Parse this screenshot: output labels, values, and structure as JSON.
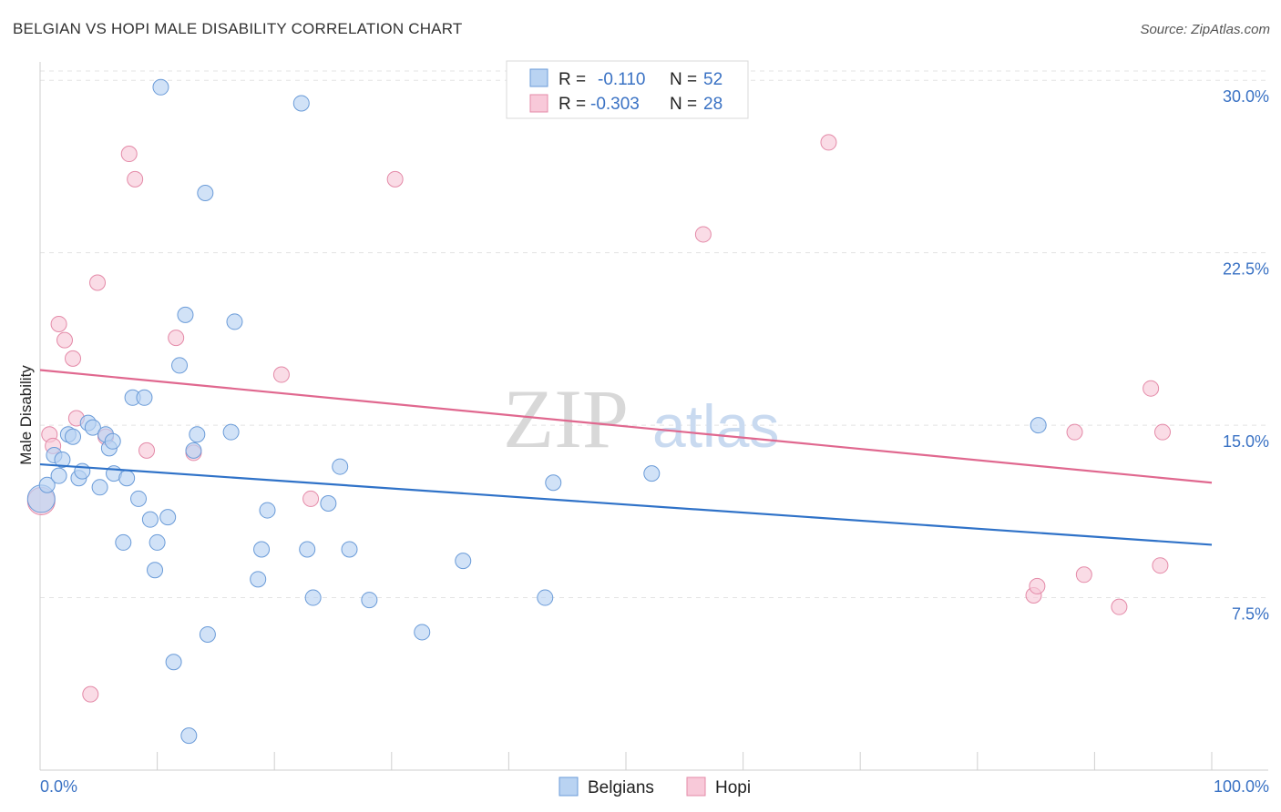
{
  "title": "BELGIAN VS HOPI MALE DISABILITY CORRELATION CHART",
  "source": "Source: ZipAtlas.com",
  "watermark": {
    "part1": "ZIP",
    "part2": "atlas"
  },
  "colors": {
    "belgians_fill": "#b9d3f2",
    "belgians_stroke": "#6a9bd8",
    "belgians_line": "#2f72c8",
    "hopi_fill": "#f8c9d9",
    "hopi_stroke": "#e48aa8",
    "hopi_line": "#e0688f",
    "grid": "#e3e3e3",
    "axis_label": "#3a72c4"
  },
  "legend_top": [
    {
      "series": "belgians",
      "r_label": "R =",
      "r_value": "-0.110",
      "n_label": "N =",
      "n_value": "52"
    },
    {
      "series": "hopi",
      "r_label": "R =",
      "r_value": "-0.303",
      "n_label": "N =",
      "n_value": "28"
    }
  ],
  "chart_data": {
    "type": "scatter",
    "title": "BELGIAN VS HOPI MALE DISABILITY CORRELATION CHART",
    "xlabel": "",
    "ylabel": "Male Disability",
    "xlim": [
      0,
      100
    ],
    "ylim": [
      0,
      30.8
    ],
    "x_tick_labels": [
      {
        "value": 0,
        "label": "0.0%"
      },
      {
        "value": 100,
        "label": "100.0%"
      }
    ],
    "y_ticks": [
      {
        "value": 7.5,
        "label": "7.5%"
      },
      {
        "value": 15,
        "label": "15.0%"
      },
      {
        "value": 22.5,
        "label": "22.5%"
      },
      {
        "value": 30,
        "label": "30.0%"
      }
    ],
    "legend": [
      "Belgians",
      "Hopi"
    ],
    "series": [
      {
        "name": "Belgians",
        "trend": {
          "x": [
            0,
            100
          ],
          "y": [
            13.3,
            9.8
          ]
        },
        "points": [
          [
            0.1,
            11.8
          ],
          [
            0.6,
            12.4
          ],
          [
            1.2,
            13.7
          ],
          [
            1.6,
            12.8
          ],
          [
            1.9,
            13.5
          ],
          [
            2.4,
            14.6
          ],
          [
            2.8,
            14.5
          ],
          [
            3.3,
            12.7
          ],
          [
            3.6,
            13.0
          ],
          [
            4.1,
            15.1
          ],
          [
            4.5,
            14.9
          ],
          [
            5.1,
            12.3
          ],
          [
            5.6,
            14.6
          ],
          [
            5.9,
            14.0
          ],
          [
            6.2,
            14.3
          ],
          [
            6.3,
            12.9
          ],
          [
            7.1,
            9.9
          ],
          [
            7.4,
            12.7
          ],
          [
            7.9,
            16.2
          ],
          [
            8.4,
            11.8
          ],
          [
            8.9,
            16.2
          ],
          [
            9.4,
            10.9
          ],
          [
            9.8,
            8.7
          ],
          [
            10.0,
            9.9
          ],
          [
            10.3,
            29.7
          ],
          [
            10.9,
            11.0
          ],
          [
            11.4,
            4.7
          ],
          [
            11.9,
            17.6
          ],
          [
            12.4,
            19.8
          ],
          [
            12.7,
            1.5
          ],
          [
            13.1,
            13.9
          ],
          [
            13.4,
            14.6
          ],
          [
            14.1,
            25.1
          ],
          [
            14.3,
            5.9
          ],
          [
            16.3,
            14.7
          ],
          [
            16.6,
            19.5
          ],
          [
            18.6,
            8.3
          ],
          [
            18.9,
            9.6
          ],
          [
            19.4,
            11.3
          ],
          [
            22.3,
            29.0
          ],
          [
            22.8,
            9.6
          ],
          [
            23.3,
            7.5
          ],
          [
            24.6,
            11.6
          ],
          [
            25.6,
            13.2
          ],
          [
            26.4,
            9.6
          ],
          [
            28.1,
            7.4
          ],
          [
            32.6,
            6.0
          ],
          [
            36.1,
            9.1
          ],
          [
            43.1,
            7.5
          ],
          [
            43.8,
            12.5
          ],
          [
            52.2,
            12.9
          ],
          [
            85.2,
            15.0
          ]
        ]
      },
      {
        "name": "Hopi",
        "trend": {
          "x": [
            0,
            100
          ],
          "y": [
            17.4,
            12.5
          ]
        },
        "points": [
          [
            0.1,
            11.7
          ],
          [
            0.8,
            14.6
          ],
          [
            1.1,
            14.1
          ],
          [
            1.6,
            19.4
          ],
          [
            2.1,
            18.7
          ],
          [
            2.8,
            17.9
          ],
          [
            3.1,
            15.3
          ],
          [
            4.3,
            3.3
          ],
          [
            4.9,
            21.2
          ],
          [
            5.6,
            14.5
          ],
          [
            7.6,
            26.8
          ],
          [
            8.1,
            25.7
          ],
          [
            9.1,
            13.9
          ],
          [
            11.6,
            18.8
          ],
          [
            13.1,
            13.8
          ],
          [
            20.6,
            17.2
          ],
          [
            23.1,
            11.8
          ],
          [
            30.3,
            25.7
          ],
          [
            56.6,
            23.3
          ],
          [
            67.3,
            27.3
          ],
          [
            84.8,
            7.6
          ],
          [
            85.1,
            8.0
          ],
          [
            88.3,
            14.7
          ],
          [
            89.1,
            8.5
          ],
          [
            92.1,
            7.1
          ],
          [
            94.8,
            16.6
          ],
          [
            95.6,
            8.9
          ],
          [
            95.8,
            14.7
          ]
        ]
      }
    ]
  }
}
